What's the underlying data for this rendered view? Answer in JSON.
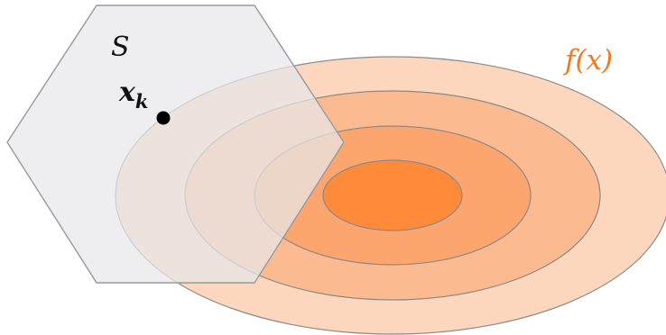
{
  "labels": {
    "set_name": "S",
    "point_main": "x",
    "point_sub": "k",
    "function": "f(x)"
  },
  "colors": {
    "set_fill": "#e7e8ea",
    "set_stroke": "#9a9a9a",
    "level_ring_1": "#fcd6bd",
    "level_ring_2": "#fcba90",
    "level_ring_3": "#fca56e",
    "level_ring_4": "#ff8a3a",
    "ring_stroke": "#8a8a8a",
    "function_label": "#f07a1e",
    "point": "#000000",
    "text": "#111111"
  }
}
